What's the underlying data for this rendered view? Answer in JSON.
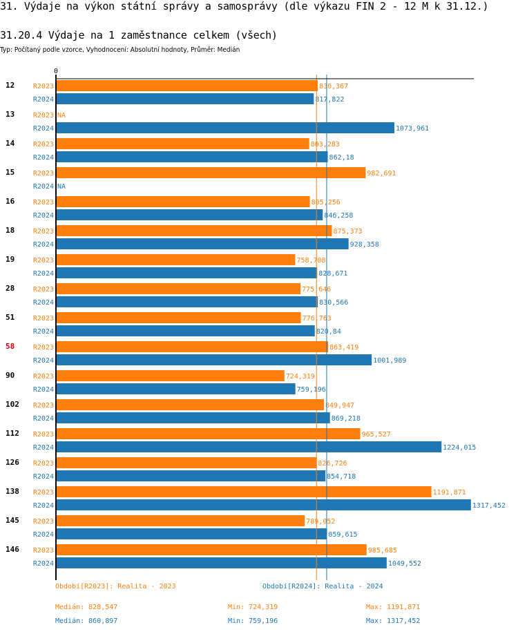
{
  "header": {
    "title": "31. Výdaje na výkon státní správy a samosprávy (dle výkazu FIN 2 - 12 M k 31.12.)",
    "subtitle": "31.20.4 Výdaje na 1 zaměstnance celkem (všech)",
    "meta": "Typ: Počítaný podle vzorce, Vyhodnocení: Absolutní hodnoty, Průměr: Medián"
  },
  "colors": {
    "R2023": "#ff7f0e",
    "R2024": "#1f77b4",
    "highlight": "#e00000",
    "axis": "#000000"
  },
  "chart_data": {
    "type": "bar",
    "orientation": "horizontal",
    "title": "31.20.4 Výdaje na 1 zaměstnance celkem (všech)",
    "xlabel": "",
    "ylabel": "",
    "xlim": [
      0,
      1330
    ],
    "x_tick_labels": [
      "0"
    ],
    "grid": false,
    "categories": [
      "12",
      "13",
      "14",
      "15",
      "16",
      "18",
      "19",
      "28",
      "51",
      "58",
      "90",
      "102",
      "112",
      "126",
      "138",
      "145",
      "146"
    ],
    "highlighted_category": "58",
    "series": [
      {
        "name": "R2023",
        "label": "R2023",
        "values": [
          830.367,
          null,
          803.283,
          982.691,
          805.256,
          875.373,
          758.708,
          775.646,
          776.763,
          863.419,
          724.319,
          849.947,
          965.527,
          826.726,
          1191.871,
          789.052,
          985.685
        ],
        "value_labels": [
          "830,367",
          "NA",
          "803,283",
          "982,691",
          "805,256",
          "875,373",
          "758,708",
          "775,646",
          "776,763",
          "863,419",
          "724,319",
          "849,947",
          "965,527",
          "826,726",
          "1191,871",
          "789,052",
          "985,685"
        ],
        "median": 828.547
      },
      {
        "name": "R2024",
        "label": "R2024",
        "values": [
          817.822,
          1073.961,
          862.18,
          null,
          846.258,
          928.358,
          828.671,
          830.566,
          820.84,
          1001.989,
          759.196,
          869.218,
          1224.015,
          854.718,
          1317.452,
          859.615,
          1049.552
        ],
        "value_labels": [
          "817,822",
          "1073,961",
          "862,18",
          "NA",
          "846,258",
          "928,358",
          "828,671",
          "830,566",
          "820,84",
          "1001,989",
          "759,196",
          "869,218",
          "1224,015",
          "854,718",
          "1317,452",
          "859,615",
          "1049,552"
        ],
        "median": 860.897
      }
    ]
  },
  "legend": {
    "r2023": "Období[R2023]: Realita - 2023",
    "r2024": "Období[R2024]: Realita - 2024"
  },
  "stats": {
    "r2023": {
      "median": "Medián: 828,547",
      "min": "Min: 724,319",
      "max": "Max: 1191,871"
    },
    "r2024": {
      "median": "Medián: 860,897",
      "min": "Min: 759,196",
      "max": "Max: 1317,452"
    }
  }
}
